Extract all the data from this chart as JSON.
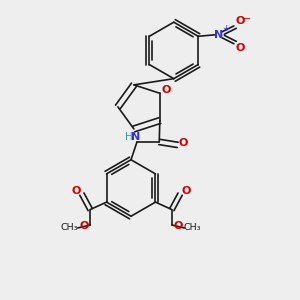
{
  "background_color": "#eeeeee",
  "bond_color": "#1a1a1a",
  "oxygen_color": "#cc0000",
  "nitrogen_color": "#3333cc",
  "hydrogen_color": "#339999",
  "line_width": 1.2,
  "fig_width": 3.0,
  "fig_height": 3.0,
  "dpi": 100,
  "xlim": [
    0,
    10
  ],
  "ylim": [
    0,
    10
  ]
}
